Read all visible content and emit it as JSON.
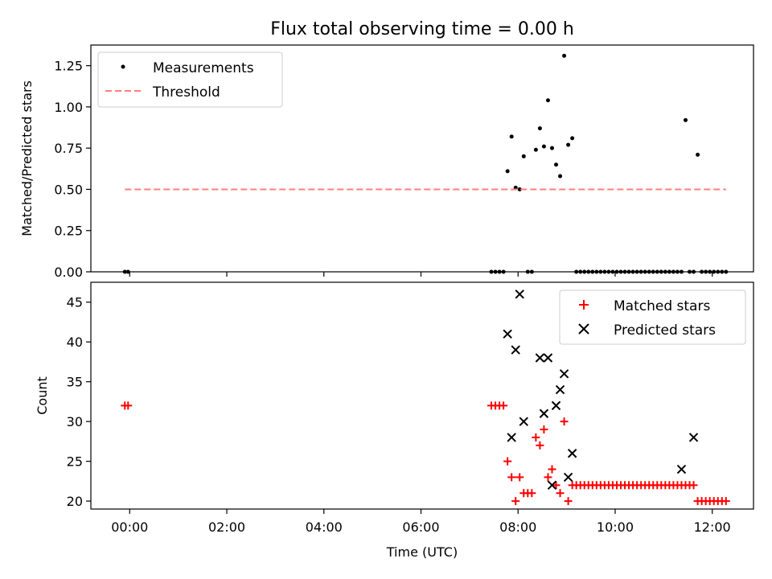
{
  "chart_data": [
    {
      "type": "scatter",
      "title": "Flux total observing time = 0.00 h",
      "xlabel": "",
      "ylabel": "Matched/Predicted stars",
      "ylim": [
        0.0,
        1.375
      ],
      "xlim_hours": [
        -0.8,
        12.85
      ],
      "yticks": [
        "0.00",
        "0.25",
        "0.50",
        "0.75",
        "1.00",
        "1.25"
      ],
      "legend": "top-left",
      "grid": false,
      "series": [
        {
          "name": "Measurements",
          "marker": "dot",
          "color": "#000000",
          "x": [
            "23:54",
            "23:58",
            "07:27",
            "07:32",
            "07:37",
            "07:42",
            "07:47",
            "07:52",
            "07:57",
            "08:02",
            "08:07",
            "08:12",
            "08:17",
            "08:22",
            "08:27",
            "08:32",
            "08:37",
            "08:42",
            "08:47",
            "08:52",
            "08:57",
            "09:02",
            "09:07",
            "09:12",
            "09:17",
            "09:22",
            "09:27",
            "09:32",
            "09:37",
            "09:42",
            "09:47",
            "09:52",
            "09:57",
            "10:02",
            "10:07",
            "10:12",
            "10:17",
            "10:22",
            "10:27",
            "10:32",
            "10:37",
            "10:42",
            "10:47",
            "10:52",
            "10:57",
            "11:02",
            "11:07",
            "11:12",
            "11:17",
            "11:22",
            "11:27",
            "11:32",
            "11:37",
            "11:42",
            "11:47",
            "11:52",
            "11:57",
            "12:02",
            "12:07",
            "12:12",
            "12:17"
          ],
          "y": [
            0,
            0,
            0,
            0,
            0,
            0,
            0.61,
            0.82,
            0.51,
            0.5,
            0.7,
            0,
            0,
            0.74,
            0.87,
            0.76,
            1.04,
            0.75,
            0.65,
            0.58,
            1.31,
            0.77,
            0.81,
            0,
            0,
            0,
            0,
            0,
            0,
            0,
            0,
            0,
            0,
            0,
            0,
            0,
            0,
            0,
            0,
            0,
            0,
            0,
            0,
            0,
            0,
            0,
            0,
            0,
            0,
            0,
            0.92,
            0,
            0,
            0.71,
            0,
            0,
            0,
            0,
            0,
            0,
            0
          ]
        },
        {
          "name": "Threshold",
          "line": "dashed",
          "color": "#ff7f7f",
          "x": [
            "23:54",
            "12:17"
          ],
          "y": [
            0.5,
            0.5
          ]
        }
      ]
    },
    {
      "type": "scatter",
      "title": "",
      "xlabel": "Time (UTC)",
      "ylabel": "Count",
      "ylim": [
        19,
        47.5
      ],
      "xlim_hours": [
        -0.8,
        12.85
      ],
      "yticks": [
        "20",
        "25",
        "30",
        "35",
        "40",
        "45"
      ],
      "xticks": [
        "00:00",
        "02:00",
        "04:00",
        "06:00",
        "08:00",
        "10:00",
        "12:00"
      ],
      "legend": "top-right",
      "grid": false,
      "series": [
        {
          "name": "Matched stars",
          "marker": "plus",
          "color": "#ff0000",
          "x": [
            "23:54",
            "23:58",
            "07:27",
            "07:32",
            "07:37",
            "07:42",
            "07:47",
            "07:52",
            "07:57",
            "08:02",
            "08:07",
            "08:12",
            "08:17",
            "08:22",
            "08:27",
            "08:32",
            "08:37",
            "08:42",
            "08:47",
            "08:52",
            "08:57",
            "09:02",
            "09:07",
            "09:12",
            "09:17",
            "09:22",
            "09:27",
            "09:32",
            "09:37",
            "09:42",
            "09:47",
            "09:52",
            "09:57",
            "10:02",
            "10:07",
            "10:12",
            "10:17",
            "10:22",
            "10:27",
            "10:32",
            "10:37",
            "10:42",
            "10:47",
            "10:52",
            "10:57",
            "11:02",
            "11:07",
            "11:12",
            "11:17",
            "11:22",
            "11:27",
            "11:32",
            "11:37",
            "11:42",
            "11:47",
            "11:52",
            "11:57",
            "12:02",
            "12:07",
            "12:12",
            "12:17"
          ],
          "y": [
            32,
            32,
            32,
            32,
            32,
            32,
            25,
            23,
            20,
            23,
            21,
            21,
            21,
            28,
            27,
            29,
            23,
            24,
            22,
            21,
            30,
            20,
            22,
            22,
            22,
            22,
            22,
            22,
            22,
            22,
            22,
            22,
            22,
            22,
            22,
            22,
            22,
            22,
            22,
            22,
            22,
            22,
            22,
            22,
            22,
            22,
            22,
            22,
            22,
            22,
            22,
            22,
            22,
            20,
            20,
            20,
            20,
            20,
            20,
            20,
            20
          ]
        },
        {
          "name": "Predicted stars",
          "marker": "x",
          "color": "#000000",
          "x": [
            "07:47",
            "07:52",
            "07:57",
            "08:02",
            "08:07",
            "08:27",
            "08:32",
            "08:37",
            "08:42",
            "08:47",
            "08:52",
            "08:57",
            "09:02",
            "09:07",
            "11:22",
            "11:37"
          ],
          "y": [
            41,
            28,
            39,
            46,
            30,
            38,
            31,
            38,
            22,
            32,
            34,
            36,
            23,
            26,
            24,
            28
          ]
        }
      ]
    }
  ]
}
